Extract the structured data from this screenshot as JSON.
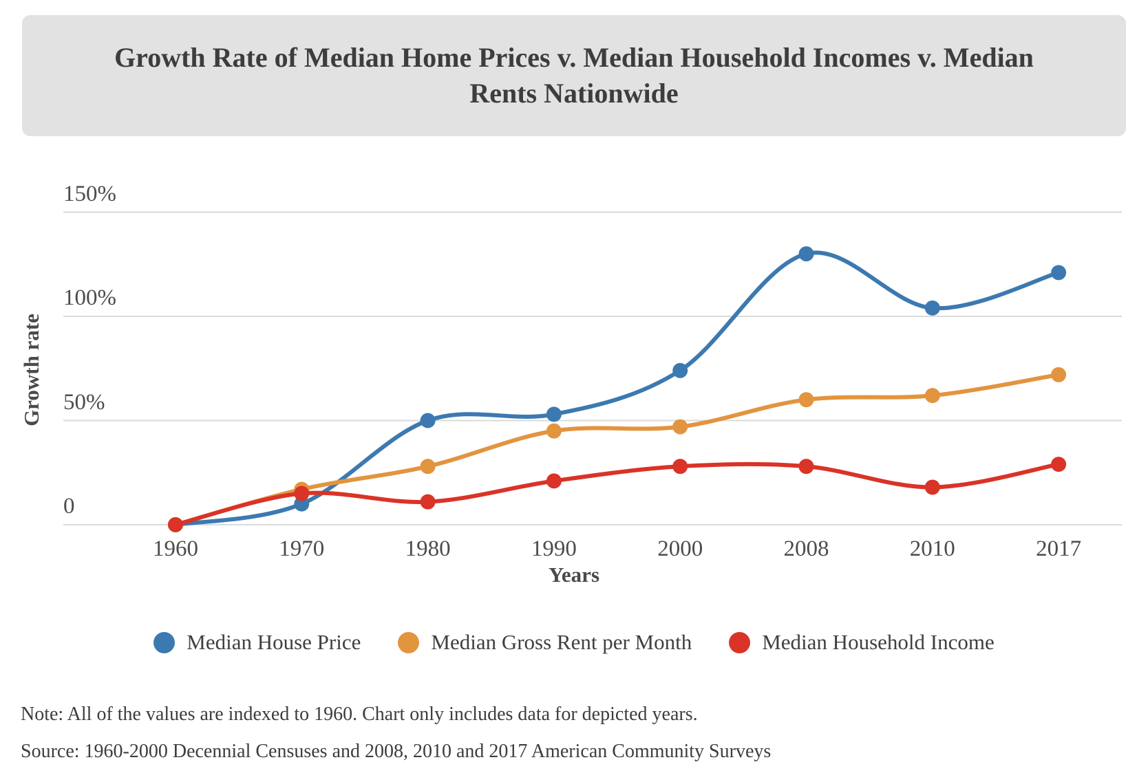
{
  "title": "Growth Rate of Median Home Prices v. Median Household Incomes v. Median Rents Nationwide",
  "chart_data": {
    "type": "line",
    "title": "Growth Rate of Median Home Prices v. Median Household Incomes v. Median Rents Nationwide",
    "categories": [
      "1960",
      "1970",
      "1980",
      "1990",
      "2000",
      "2008",
      "2010",
      "2017"
    ],
    "series": [
      {
        "name": "Median House Price",
        "color": "#3c79b0",
        "values": [
          0,
          10,
          50,
          53,
          74,
          130,
          104,
          121
        ]
      },
      {
        "name": "Median Gross Rent per Month",
        "color": "#e2943f",
        "values": [
          0,
          17,
          28,
          45,
          47,
          60,
          62,
          72
        ]
      },
      {
        "name": "Median Household Income",
        "color": "#da3327",
        "values": [
          0,
          15,
          11,
          21,
          28,
          28,
          18,
          29
        ]
      }
    ],
    "xlabel": "Years",
    "ylabel": "Growth rate",
    "yticks": [
      {
        "label": "0",
        "value": 0
      },
      {
        "label": "50%",
        "value": 50
      },
      {
        "label": "100%",
        "value": 100
      },
      {
        "label": "150%",
        "value": 150
      }
    ],
    "ylim": [
      0,
      160
    ],
    "grid": true,
    "grid_color": "#dadada",
    "legend_position": "bottom",
    "point_markers": true
  },
  "notes": {
    "note": "Note: All of the values are indexed to 1960. Chart only includes data for depicted years.",
    "source": "Source: 1960-2000 Decennial Censuses and 2008, 2010 and 2017 American Community Surveys"
  }
}
